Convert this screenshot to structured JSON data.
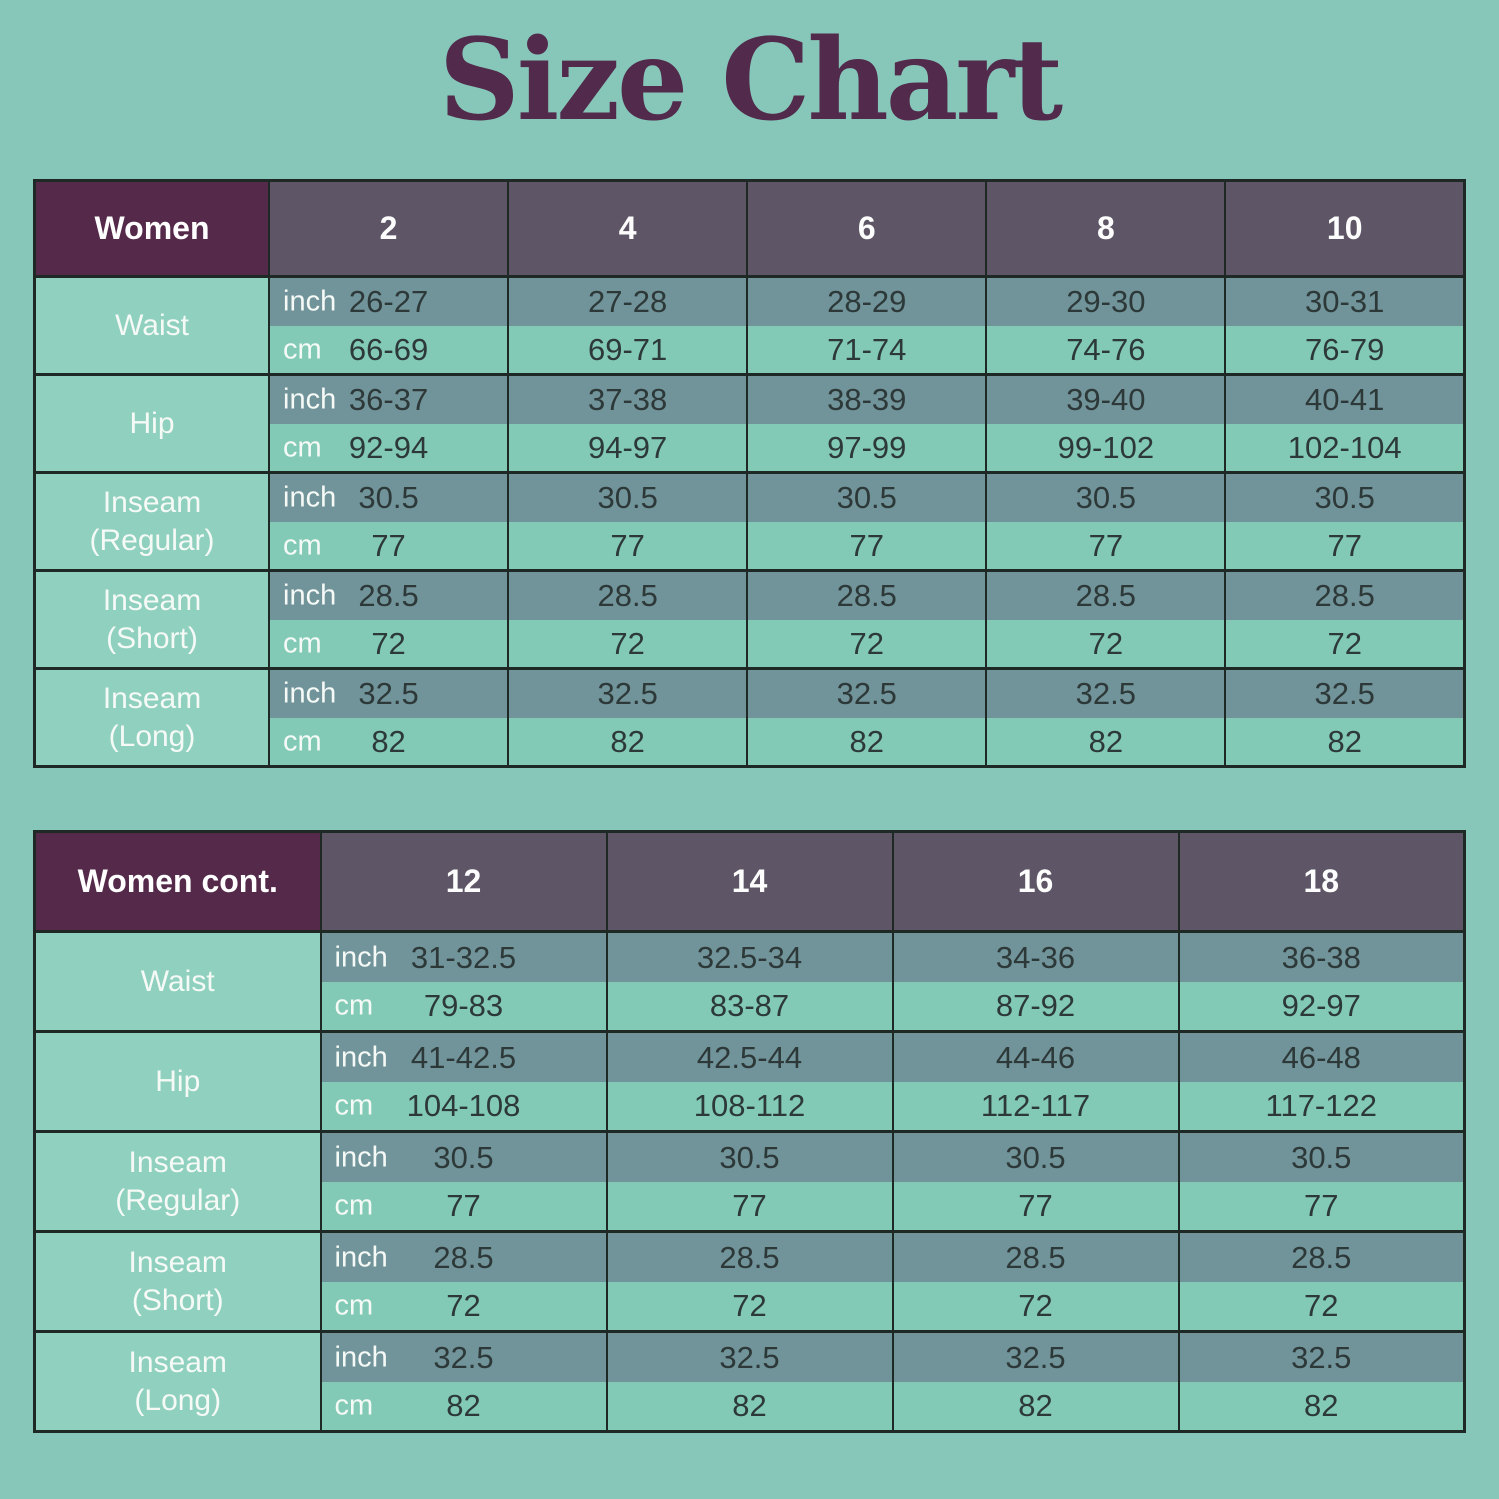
{
  "page": {
    "title": "Size Chart"
  },
  "colors": {
    "page_bg": "#87C7B9",
    "title": "#512A4C",
    "corner_header_bg": "#54294A",
    "size_header_bg": "#5E5666",
    "row_label_bg": "#90D0BE",
    "inch_row_bg": "#71939A",
    "cm_row_bg": "#82CAB5",
    "value_text": "#2D3938",
    "light_text": "#F5FAF7",
    "border": "#1E2926"
  },
  "chart_data": [
    {
      "type": "table",
      "title": "Women",
      "columns": [
        "2",
        "4",
        "6",
        "8",
        "10"
      ],
      "rows": [
        {
          "label": "Waist",
          "unit_rows": [
            {
              "unit": "inch",
              "values": [
                "26-27",
                "27-28",
                "28-29",
                "29-30",
                "30-31"
              ]
            },
            {
              "unit": "cm",
              "values": [
                "66-69",
                "69-71",
                "71-74",
                "74-76",
                "76-79"
              ]
            }
          ]
        },
        {
          "label": "Hip",
          "unit_rows": [
            {
              "unit": "inch",
              "values": [
                "36-37",
                "37-38",
                "38-39",
                "39-40",
                "40-41"
              ]
            },
            {
              "unit": "cm",
              "values": [
                "92-94",
                "94-97",
                "97-99",
                "99-102",
                "102-104"
              ]
            }
          ]
        },
        {
          "label": "Inseam\n(Regular)",
          "unit_rows": [
            {
              "unit": "inch",
              "values": [
                "30.5",
                "30.5",
                "30.5",
                "30.5",
                "30.5"
              ]
            },
            {
              "unit": "cm",
              "values": [
                "77",
                "77",
                "77",
                "77",
                "77"
              ]
            }
          ]
        },
        {
          "label": "Inseam\n(Short)",
          "unit_rows": [
            {
              "unit": "inch",
              "values": [
                "28.5",
                "28.5",
                "28.5",
                "28.5",
                "28.5"
              ]
            },
            {
              "unit": "cm",
              "values": [
                "72",
                "72",
                "72",
                "72",
                "72"
              ]
            }
          ]
        },
        {
          "label": "Inseam\n(Long)",
          "unit_rows": [
            {
              "unit": "inch",
              "values": [
                "32.5",
                "32.5",
                "32.5",
                "32.5",
                "32.5"
              ]
            },
            {
              "unit": "cm",
              "values": [
                "82",
                "82",
                "82",
                "82",
                "82"
              ]
            }
          ]
        }
      ]
    },
    {
      "type": "table",
      "title": "Women cont.",
      "columns": [
        "12",
        "14",
        "16",
        "18"
      ],
      "rows": [
        {
          "label": "Waist",
          "unit_rows": [
            {
              "unit": "inch",
              "values": [
                "31-32.5",
                "32.5-34",
                "34-36",
                "36-38"
              ]
            },
            {
              "unit": "cm",
              "values": [
                "79-83",
                "83-87",
                "87-92",
                "92-97"
              ]
            }
          ]
        },
        {
          "label": "Hip",
          "unit_rows": [
            {
              "unit": "inch",
              "values": [
                "41-42.5",
                "42.5-44",
                "44-46",
                "46-48"
              ]
            },
            {
              "unit": "cm",
              "values": [
                "104-108",
                "108-112",
                "112-117",
                "117-122"
              ]
            }
          ]
        },
        {
          "label": "Inseam\n(Regular)",
          "unit_rows": [
            {
              "unit": "inch",
              "values": [
                "30.5",
                "30.5",
                "30.5",
                "30.5"
              ]
            },
            {
              "unit": "cm",
              "values": [
                "77",
                "77",
                "77",
                "77"
              ]
            }
          ]
        },
        {
          "label": "Inseam\n(Short)",
          "unit_rows": [
            {
              "unit": "inch",
              "values": [
                "28.5",
                "28.5",
                "28.5",
                "28.5"
              ]
            },
            {
              "unit": "cm",
              "values": [
                "72",
                "72",
                "72",
                "72"
              ]
            }
          ]
        },
        {
          "label": "Inseam\n(Long)",
          "unit_rows": [
            {
              "unit": "inch",
              "values": [
                "32.5",
                "32.5",
                "32.5",
                "32.5"
              ]
            },
            {
              "unit": "cm",
              "values": [
                "82",
                "82",
                "82",
                "82"
              ]
            }
          ]
        }
      ]
    }
  ]
}
